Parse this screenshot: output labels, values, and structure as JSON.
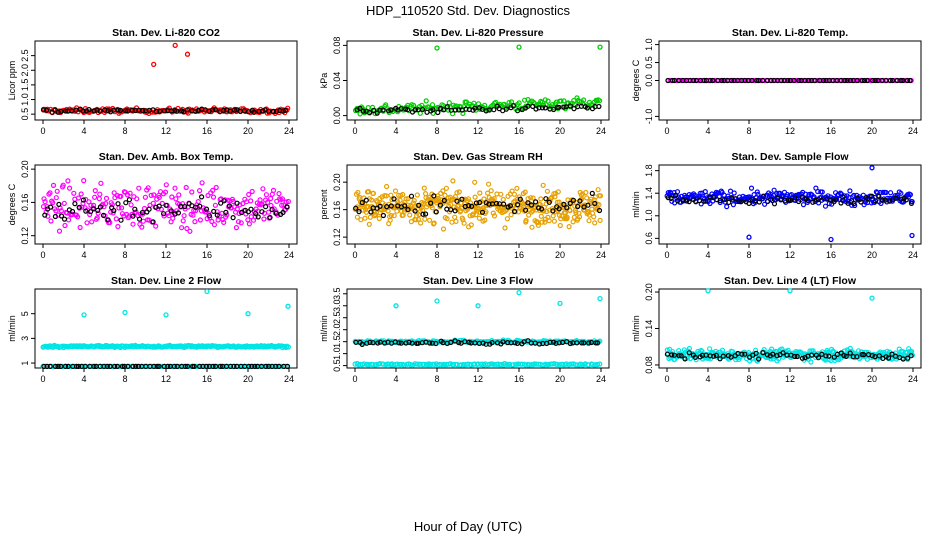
{
  "figure": {
    "title": "HDP_110520  Std. Dev. Diagnostics",
    "xlabel": "Hour of Day (UTC)"
  },
  "chart_data": [
    {
      "type": "scatter",
      "title": "Stan. Dev. Li-820 CO2",
      "ylabel": "Licor ppm",
      "xlim": [
        0,
        24
      ],
      "ylim": [
        0.3,
        3.0
      ],
      "xticks": [
        0,
        4,
        8,
        12,
        16,
        20,
        24
      ],
      "yticks": [
        0.5,
        1.0,
        1.5,
        2.0,
        2.5
      ],
      "ytick_labels": [
        "0.5",
        "1.0",
        "1.5",
        "2.0",
        "2.5"
      ],
      "series": [
        {
          "color": "#ff0000",
          "base": 0.62,
          "spread": 0.08,
          "count": 170,
          "outliers": [
            [
              10.8,
              2.2
            ],
            [
              12.9,
              2.85
            ],
            [
              14.1,
              2.55
            ]
          ]
        },
        {
          "color": "#000000",
          "base": 0.62,
          "spread": 0.05,
          "count": 70,
          "outliers": []
        }
      ]
    },
    {
      "type": "scatter",
      "title": "Stan. Dev. Li-820 Pressure",
      "ylabel": "kPa",
      "xlim": [
        0,
        24
      ],
      "ylim": [
        -0.005,
        0.085
      ],
      "xticks": [
        0,
        4,
        8,
        12,
        16,
        20,
        24
      ],
      "yticks": [
        0.0,
        0.04,
        0.08
      ],
      "ytick_labels": [
        "0.00",
        "0.04",
        "0.08"
      ],
      "series": [
        {
          "color": "#00cc00",
          "base": 0.006,
          "spread": 0.006,
          "count": 170,
          "trend": 0.0004,
          "outliers": [
            [
              8.0,
              0.077
            ],
            [
              16.0,
              0.078
            ],
            [
              23.9,
              0.078
            ]
          ]
        },
        {
          "color": "#000000",
          "base": 0.005,
          "spread": 0.003,
          "count": 70,
          "trend": 0.0002,
          "outliers": []
        }
      ]
    },
    {
      "type": "scatter",
      "title": "Stan. Dev. Li-820 Temp.",
      "ylabel": "degrees C",
      "xlim": [
        0,
        24
      ],
      "ylim": [
        -1.1,
        1.1
      ],
      "xticks": [
        0,
        4,
        8,
        12,
        16,
        20,
        24
      ],
      "yticks": [
        -1.0,
        0.0,
        0.5,
        1.0
      ],
      "ytick_labels": [
        "-1.0",
        "0.0",
        "0.5",
        "1.0"
      ],
      "series": [
        {
          "color": "#ff00ff",
          "base": 0.0,
          "spread": 0.0,
          "count": 120,
          "outliers": []
        },
        {
          "color": "#000000",
          "base": 0.0,
          "spread": 0.0,
          "count": 70,
          "outliers": []
        }
      ]
    },
    {
      "type": "scatter",
      "title": "Stan. Dev. Amb. Box Temp.",
      "ylabel": "degrees C",
      "xlim": [
        0,
        24
      ],
      "ylim": [
        0.11,
        0.205
      ],
      "xticks": [
        0,
        4,
        8,
        12,
        16,
        20,
        24
      ],
      "yticks": [
        0.12,
        0.16,
        0.2
      ],
      "ytick_labels": [
        "0.12",
        "0.16",
        "0.20"
      ],
      "series": [
        {
          "color": "#ff00ff",
          "base": 0.155,
          "spread": 0.025,
          "count": 260,
          "outliers": []
        },
        {
          "color": "#000000",
          "base": 0.152,
          "spread": 0.015,
          "count": 70,
          "outliers": []
        }
      ]
    },
    {
      "type": "scatter",
      "title": "Stan. Dev. Gas Stream RH",
      "ylabel": "percent",
      "xlim": [
        0,
        24
      ],
      "ylim": [
        0.11,
        0.225
      ],
      "xticks": [
        0,
        4,
        8,
        12,
        16,
        20,
        24
      ],
      "yticks": [
        0.12,
        0.16,
        0.2
      ],
      "ytick_labels": [
        "0.12",
        "0.16",
        "0.20"
      ],
      "series": [
        {
          "color": "#e6a000",
          "base": 0.165,
          "spread": 0.025,
          "count": 420,
          "outliers": []
        },
        {
          "color": "#000000",
          "base": 0.165,
          "spread": 0.015,
          "count": 70,
          "outliers": []
        }
      ]
    },
    {
      "type": "scatter",
      "title": "Stan. Dev. Sample Flow",
      "ylabel": "ml/min",
      "xlim": [
        0,
        24
      ],
      "ylim": [
        0.5,
        1.9
      ],
      "xticks": [
        0,
        4,
        8,
        12,
        16,
        20,
        24
      ],
      "yticks": [
        0.6,
        1.0,
        1.4,
        1.8
      ],
      "ytick_labels": [
        "0.6",
        "1.0",
        "1.4",
        "1.8"
      ],
      "series": [
        {
          "color": "#0000ff",
          "base": 1.32,
          "spread": 0.12,
          "count": 260,
          "outliers": [
            [
              8.0,
              0.62
            ],
            [
              16.0,
              0.58
            ],
            [
              23.9,
              0.65
            ],
            [
              20.0,
              1.85
            ]
          ]
        },
        {
          "color": "#000000",
          "base": 1.28,
          "spread": 0.08,
          "count": 70,
          "outliers": []
        }
      ]
    },
    {
      "type": "scatter",
      "title": "Stan. Dev. Line 2 Flow",
      "ylabel": "ml/min",
      "xlim": [
        0,
        24
      ],
      "ylim": [
        0.6,
        7.0
      ],
      "xticks": [
        0,
        4,
        8,
        12,
        16,
        20,
        24
      ],
      "yticks": [
        1,
        3,
        5
      ],
      "ytick_labels": [
        "1",
        "3",
        "5"
      ],
      "series": [
        {
          "color": "#00e5e5",
          "base": 2.35,
          "spread": 0.08,
          "count": 220,
          "outliers": [
            [
              4.0,
              4.9
            ],
            [
              8.0,
              5.1
            ],
            [
              12.0,
              4.9
            ],
            [
              16.0,
              6.8
            ],
            [
              20.0,
              5.0
            ],
            [
              23.9,
              5.6
            ]
          ]
        },
        {
          "color": "#00e5e5",
          "base": 0.45,
          "spread": 0.02,
          "count": 120,
          "outliers": []
        },
        {
          "color": "#000000",
          "base": 0.45,
          "spread": 0.01,
          "count": 70,
          "outliers": []
        }
      ]
    },
    {
      "type": "scatter",
      "title": "Stan. Dev. Line 3 Flow",
      "ylabel": "ml/min",
      "xlim": [
        0,
        24
      ],
      "ylim": [
        0.4,
        3.7
      ],
      "xticks": [
        0,
        4,
        8,
        12,
        16,
        20,
        24
      ],
      "yticks": [
        0.5,
        1.0,
        1.5,
        2.0,
        2.5,
        3.0,
        3.5
      ],
      "ytick_labels": [
        "0.5",
        "1.0",
        "1.5",
        "2.0",
        "2.5",
        "3.0",
        "3.5"
      ],
      "series": [
        {
          "color": "#00e5e5",
          "base": 1.5,
          "spread": 0.06,
          "count": 200,
          "outliers": [
            [
              4.0,
              3.0
            ],
            [
              8.0,
              3.2
            ],
            [
              12.0,
              3.0
            ],
            [
              16.0,
              3.55
            ],
            [
              20.0,
              3.1
            ],
            [
              23.9,
              3.3
            ]
          ]
        },
        {
          "color": "#00e5e5",
          "base": 0.55,
          "spread": 0.03,
          "count": 140,
          "outliers": []
        },
        {
          "color": "#000000",
          "base": 1.45,
          "spread": 0.06,
          "count": 70,
          "outliers": []
        }
      ]
    },
    {
      "type": "scatter",
      "title": "Stan. Dev. Line 4 (LT) Flow",
      "ylabel": "ml/min",
      "xlim": [
        0,
        24
      ],
      "ylim": [
        0.075,
        0.205
      ],
      "xticks": [
        0,
        4,
        8,
        12,
        16,
        20,
        24
      ],
      "yticks": [
        0.08,
        0.14,
        0.2
      ],
      "ytick_labels": [
        "0.08",
        "0.14",
        "0.20"
      ],
      "series": [
        {
          "color": "#00e5e5",
          "base": 0.097,
          "spread": 0.009,
          "count": 320,
          "outliers": [
            [
              4.0,
              0.202
            ],
            [
              12.0,
              0.202
            ],
            [
              20.0,
              0.19
            ]
          ]
        },
        {
          "color": "#000000",
          "base": 0.095,
          "spread": 0.006,
          "count": 70,
          "outliers": []
        }
      ]
    }
  ]
}
